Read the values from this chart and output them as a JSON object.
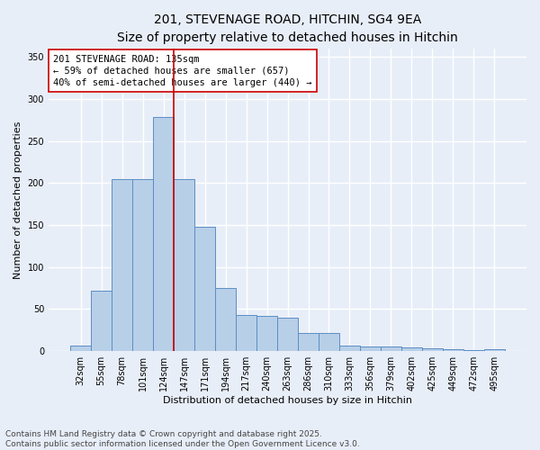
{
  "title_line1": "201, STEVENAGE ROAD, HITCHIN, SG4 9EA",
  "title_line2": "Size of property relative to detached houses in Hitchin",
  "xlabel": "Distribution of detached houses by size in Hitchin",
  "ylabel": "Number of detached properties",
  "categories": [
    "32sqm",
    "55sqm",
    "78sqm",
    "101sqm",
    "124sqm",
    "147sqm",
    "171sqm",
    "194sqm",
    "217sqm",
    "240sqm",
    "263sqm",
    "286sqm",
    "310sqm",
    "333sqm",
    "356sqm",
    "379sqm",
    "402sqm",
    "425sqm",
    "449sqm",
    "472sqm",
    "495sqm"
  ],
  "values": [
    7,
    72,
    205,
    205,
    278,
    205,
    148,
    75,
    43,
    42,
    40,
    22,
    22,
    7,
    6,
    6,
    5,
    3,
    2,
    1,
    2
  ],
  "bar_color": "#b8cfe8",
  "bar_edge_color": "#5b8ec4",
  "bar_edge_width": 0.7,
  "vline_color": "#cc0000",
  "annotation_text": "201 STEVENAGE ROAD: 135sqm\n← 59% of detached houses are smaller (657)\n40% of semi-detached houses are larger (440) →",
  "annotation_box_color": "#ffffff",
  "annotation_box_edge_color": "#cc0000",
  "ylim": [
    0,
    360
  ],
  "yticks": [
    0,
    50,
    100,
    150,
    200,
    250,
    300,
    350
  ],
  "background_color": "#e8eef8",
  "grid_color": "#ffffff",
  "footer_text": "Contains HM Land Registry data © Crown copyright and database right 2025.\nContains public sector information licensed under the Open Government Licence v3.0.",
  "title_fontsize": 10,
  "subtitle_fontsize": 9,
  "annotation_fontsize": 7.5,
  "footer_fontsize": 6.5,
  "ylabel_fontsize": 8,
  "xlabel_fontsize": 8,
  "tick_fontsize": 7
}
